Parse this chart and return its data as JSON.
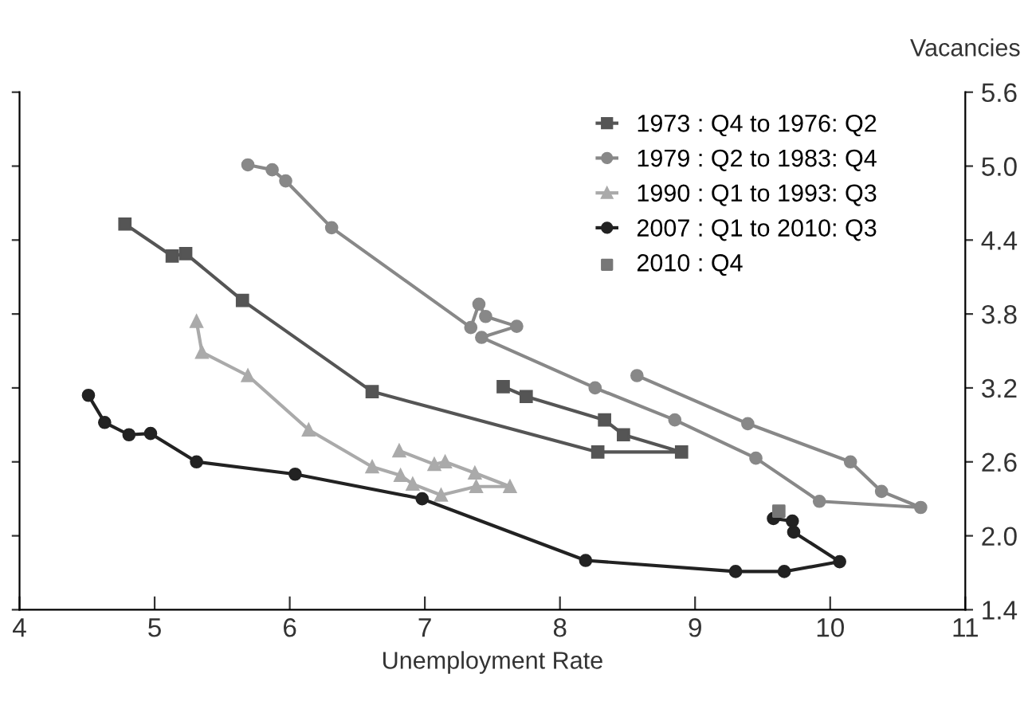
{
  "chart_data": {
    "type": "line",
    "xlabel": "Unemployment Rate",
    "ylabel": "Vacancies",
    "xlim": [
      4,
      11
    ],
    "xticks": [
      4,
      5,
      6,
      7,
      8,
      9,
      10,
      11
    ],
    "ylim": [
      1.4,
      5.6
    ],
    "yticks": [
      1.4,
      {
        "value": 2,
        "label": "2.0"
      },
      2.6,
      3.2,
      3.8,
      4.4,
      {
        "value": 5,
        "label": "5.0"
      },
      5.6
    ],
    "grid": false,
    "legend": "top right",
    "line_style": "solid",
    "series": [
      {
        "name": "1973 : Q4 to 1976: Q2",
        "color": "#555555",
        "marker": "square",
        "x": [
          4.78,
          5.13,
          5.23,
          5.65,
          6.61,
          8.28,
          8.9,
          8.47,
          8.33,
          7.75,
          7.58
        ],
        "values": [
          4.53,
          4.27,
          4.29,
          3.91,
          3.17,
          2.68,
          2.68,
          2.82,
          2.94,
          3.13,
          3.21
        ]
      },
      {
        "name": "1979 : Q2 to 1983: Q4",
        "color": "#888888",
        "marker": "circle",
        "x": [
          5.69,
          5.87,
          5.97,
          6.31,
          7.34,
          7.4,
          7.45,
          7.68,
          7.42,
          8.26,
          8.85,
          9.45,
          9.92,
          10.67,
          10.38,
          10.15,
          9.39,
          8.57
        ],
        "values": [
          5.01,
          4.97,
          4.88,
          4.5,
          3.69,
          3.88,
          3.78,
          3.7,
          3.61,
          3.2,
          2.94,
          2.63,
          2.28,
          2.23,
          2.36,
          2.6,
          2.91,
          3.3
        ]
      },
      {
        "name": "1990 : Q1 to 1993: Q3",
        "color": "#aaaaaa",
        "marker": "triangle",
        "x": [
          5.31,
          5.35,
          5.69,
          6.14,
          6.61,
          6.82,
          6.91,
          7.12,
          7.38,
          7.63,
          7.37,
          7.15,
          7.07,
          6.81
        ],
        "values": [
          3.74,
          3.49,
          3.3,
          2.86,
          2.56,
          2.49,
          2.42,
          2.33,
          2.4,
          2.4,
          2.51,
          2.6,
          2.58,
          2.69
        ]
      },
      {
        "name": "2007 : Q1 to 2010: Q3",
        "color": "#222222",
        "marker": "circle",
        "x": [
          4.51,
          4.63,
          4.81,
          4.97,
          5.31,
          6.04,
          6.98,
          8.19,
          9.3,
          9.66,
          10.07,
          9.73,
          9.72,
          9.58
        ],
        "values": [
          3.14,
          2.92,
          2.82,
          2.83,
          2.6,
          2.5,
          2.3,
          1.8,
          1.71,
          1.71,
          1.79,
          2.03,
          2.12,
          2.14
        ]
      },
      {
        "name": "2010 : Q4",
        "type": "scatter",
        "color": "#777777",
        "marker": "square",
        "x": [
          9.62
        ],
        "values": [
          2.2
        ]
      }
    ]
  }
}
